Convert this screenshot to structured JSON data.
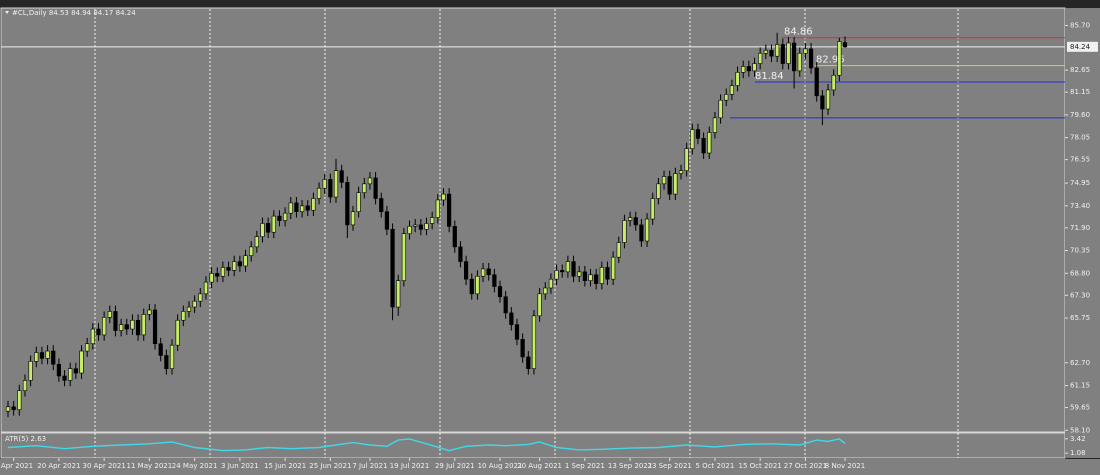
{
  "chart_data": {
    "type": "candlestick",
    "header": "#CL,Daily  84.53 84.94 84.17 84.24",
    "categories": [
      null,
      "8 Apr 2021",
      null,
      null,
      null,
      null,
      null,
      null,
      null,
      "20 Apr 2021",
      null,
      null,
      null,
      null,
      null,
      null,
      null,
      "30 Apr 2021",
      null,
      null,
      null,
      null,
      null,
      null,
      null,
      "11 May 2021",
      null,
      null,
      null,
      null,
      null,
      null,
      null,
      "24 May 2021",
      null,
      null,
      null,
      null,
      null,
      null,
      null,
      "3 Jun 2021",
      null,
      null,
      null,
      null,
      null,
      null,
      null,
      "15 Jun 2021",
      null,
      null,
      null,
      null,
      null,
      null,
      null,
      "25 Jun 2021",
      null,
      null,
      null,
      null,
      null,
      null,
      "7 Jul 2021",
      null,
      null,
      null,
      null,
      null,
      null,
      "19 Jul 2021",
      null,
      null,
      null,
      null,
      null,
      null,
      null,
      "29 Jul 2021",
      null,
      null,
      null,
      null,
      null,
      null,
      null,
      "10 Aug 2021",
      null,
      null,
      null,
      null,
      null,
      null,
      "20 Aug 2021",
      null,
      null,
      null,
      null,
      null,
      null,
      null,
      "1 Sep 2021",
      null,
      null,
      null,
      null,
      null,
      null,
      null,
      "13 Sep 2021",
      null,
      null,
      null,
      null,
      null,
      null,
      "23 Sep 2021",
      null,
      null,
      null,
      null,
      null,
      null,
      null,
      "5 Oct 2021",
      null,
      null,
      null,
      null,
      null,
      null,
      null,
      "15 Oct 2021",
      null,
      null,
      null,
      null,
      null,
      null,
      null,
      "27 Oct 2021",
      null,
      null,
      null,
      null,
      null,
      null,
      "8 Nov 2021"
    ],
    "open": [
      59.4,
      59.7,
      59.5,
      60.8,
      61.5,
      62.8,
      63.4,
      63.0,
      63.5,
      62.6,
      61.8,
      61.5,
      62.3,
      62.0,
      63.5,
      64.0,
      65.0,
      64.6,
      65.8,
      66.2,
      64.9,
      65.3,
      65.0,
      65.6,
      64.6,
      66.0,
      66.3,
      64.0,
      63.2,
      62.3,
      63.9,
      65.6,
      66.2,
      66.5,
      66.9,
      67.4,
      68.2,
      68.8,
      68.6,
      69.2,
      69.0,
      69.6,
      69.3,
      70.0,
      70.6,
      71.3,
      72.2,
      71.6,
      72.7,
      72.4,
      72.9,
      73.6,
      73.0,
      73.4,
      73.1,
      73.9,
      74.6,
      75.2,
      74.0,
      75.8,
      75.0,
      72.1,
      73.0,
      74.3,
      74.9,
      75.3,
      73.9,
      73.0,
      71.8,
      66.5,
      68.3,
      71.5,
      72.0,
      72.1,
      71.8,
      72.2,
      72.6,
      73.8,
      74.2,
      72.0,
      70.6,
      69.6,
      68.4,
      67.4,
      68.6,
      69.1,
      68.7,
      67.9,
      67.2,
      66.1,
      65.3,
      64.3,
      63.1,
      62.3,
      65.9,
      67.4,
      67.8,
      68.4,
      69.0,
      68.9,
      69.6,
      68.6,
      68.9,
      68.3,
      68.7,
      68.1,
      69.2,
      68.4,
      69.9,
      70.9,
      72.4,
      72.6,
      72.1,
      71.0,
      72.5,
      73.9,
      74.9,
      75.4,
      74.2,
      75.6,
      75.8,
      77.3,
      78.6,
      78.0,
      77.0,
      78.4,
      79.4,
      80.6,
      81.0,
      81.6,
      82.5,
      82.9,
      82.6,
      83.1,
      83.8,
      84.0,
      83.6,
      84.4,
      83.1,
      84.5,
      82.6,
      83.8,
      84.1,
      82.8,
      80.9,
      80.0,
      81.3,
      82.3,
      84.53
    ],
    "high": [
      60.1,
      60.1,
      61.2,
      61.9,
      63.2,
      63.8,
      63.8,
      63.9,
      63.9,
      63.0,
      62.2,
      62.7,
      62.7,
      63.9,
      64.4,
      65.4,
      65.4,
      66.2,
      66.6,
      66.6,
      65.7,
      65.7,
      66.0,
      66.0,
      66.4,
      66.7,
      66.7,
      64.4,
      63.6,
      64.3,
      66.0,
      66.6,
      66.9,
      67.3,
      67.8,
      68.6,
      69.2,
      69.2,
      69.6,
      69.6,
      70.0,
      70.0,
      70.4,
      71.0,
      71.7,
      72.6,
      72.6,
      73.1,
      73.1,
      73.3,
      74.0,
      74.0,
      73.8,
      73.8,
      74.3,
      75.0,
      75.6,
      75.6,
      76.6,
      76.2,
      75.4,
      73.4,
      74.7,
      75.3,
      75.7,
      75.7,
      74.3,
      73.4,
      72.2,
      68.7,
      71.9,
      72.4,
      72.5,
      72.5,
      72.6,
      73.0,
      74.2,
      74.6,
      74.6,
      72.4,
      71.0,
      70.0,
      68.8,
      69.0,
      69.5,
      69.5,
      69.1,
      68.3,
      67.6,
      66.5,
      65.7,
      64.7,
      63.5,
      66.3,
      67.8,
      68.2,
      68.8,
      69.4,
      69.4,
      70.0,
      70.0,
      69.3,
      69.3,
      69.1,
      69.1,
      69.6,
      69.6,
      70.3,
      71.3,
      72.8,
      73.0,
      73.0,
      72.5,
      72.9,
      74.3,
      75.3,
      75.8,
      75.8,
      76.0,
      76.2,
      77.7,
      79.0,
      79.0,
      78.4,
      78.8,
      79.8,
      81.0,
      81.4,
      82.0,
      82.9,
      83.3,
      83.3,
      83.5,
      84.2,
      84.4,
      84.4,
      85.2,
      84.8,
      84.9,
      84.9,
      84.2,
      84.5,
      84.5,
      83.2,
      81.3,
      81.7,
      82.7,
      84.86,
      84.94
    ],
    "low": [
      59.0,
      59.1,
      59.1,
      60.4,
      61.1,
      62.4,
      62.6,
      62.6,
      62.2,
      61.4,
      61.1,
      61.1,
      61.6,
      61.6,
      63.1,
      63.6,
      64.2,
      64.2,
      65.4,
      64.5,
      64.5,
      64.6,
      64.6,
      64.2,
      64.2,
      65.6,
      63.6,
      62.8,
      61.9,
      61.9,
      63.5,
      65.2,
      65.8,
      66.1,
      66.5,
      67.0,
      67.8,
      68.2,
      68.2,
      68.6,
      68.6,
      68.9,
      68.9,
      69.6,
      70.2,
      70.9,
      71.2,
      71.2,
      72.0,
      72.0,
      72.5,
      72.6,
      72.6,
      72.7,
      72.7,
      73.5,
      74.2,
      73.6,
      73.6,
      74.6,
      71.2,
      71.7,
      72.6,
      73.9,
      74.5,
      73.5,
      72.6,
      71.4,
      65.6,
      65.9,
      67.9,
      71.1,
      71.6,
      71.4,
      71.4,
      71.8,
      72.2,
      73.4,
      71.6,
      70.2,
      69.2,
      68.0,
      67.0,
      67.0,
      68.2,
      68.3,
      67.5,
      66.8,
      65.7,
      64.9,
      63.9,
      62.7,
      61.9,
      61.9,
      65.5,
      67.0,
      67.4,
      68.0,
      68.5,
      68.5,
      68.2,
      68.2,
      67.9,
      67.9,
      67.7,
      67.7,
      68.0,
      68.0,
      69.5,
      70.5,
      72.0,
      71.7,
      70.6,
      70.6,
      72.1,
      73.5,
      74.5,
      73.8,
      73.8,
      75.2,
      75.4,
      76.9,
      77.6,
      76.6,
      76.6,
      78.0,
      79.0,
      80.2,
      80.6,
      81.2,
      82.1,
      82.2,
      82.2,
      82.7,
      83.4,
      83.2,
      83.2,
      82.7,
      82.7,
      81.4,
      82.2,
      83.4,
      82.4,
      80.5,
      78.9,
      79.6,
      80.9,
      81.9,
      84.17
    ],
    "close": [
      59.7,
      59.5,
      60.8,
      61.5,
      62.8,
      63.4,
      63.0,
      63.5,
      62.6,
      61.8,
      61.5,
      62.3,
      62.0,
      63.5,
      64.0,
      65.0,
      64.6,
      65.8,
      66.2,
      64.9,
      65.3,
      65.0,
      65.6,
      64.6,
      66.0,
      66.3,
      64.0,
      63.2,
      62.3,
      63.9,
      65.6,
      66.2,
      66.5,
      66.9,
      67.4,
      68.2,
      68.8,
      68.6,
      69.2,
      69.0,
      69.6,
      69.3,
      70.0,
      70.6,
      71.3,
      72.2,
      71.6,
      72.7,
      72.4,
      72.9,
      73.6,
      73.0,
      73.4,
      73.1,
      73.9,
      74.6,
      75.2,
      74.0,
      75.8,
      75.0,
      72.1,
      73.0,
      74.3,
      74.9,
      75.3,
      73.9,
      73.0,
      71.8,
      66.5,
      68.3,
      71.5,
      72.0,
      72.1,
      71.8,
      72.2,
      72.6,
      73.8,
      74.2,
      72.0,
      70.6,
      69.6,
      68.4,
      67.4,
      68.6,
      69.1,
      68.7,
      67.9,
      67.2,
      66.1,
      65.3,
      64.3,
      63.1,
      62.3,
      65.9,
      67.4,
      67.8,
      68.4,
      69.0,
      68.9,
      69.6,
      68.6,
      68.9,
      68.3,
      68.7,
      68.1,
      69.2,
      68.4,
      69.9,
      70.9,
      72.4,
      72.6,
      72.1,
      71.0,
      72.5,
      73.9,
      74.9,
      75.4,
      74.2,
      75.6,
      75.8,
      77.3,
      78.6,
      78.0,
      77.0,
      78.4,
      79.4,
      80.6,
      81.0,
      81.6,
      82.5,
      82.9,
      82.6,
      83.1,
      83.8,
      84.0,
      83.6,
      84.4,
      83.1,
      84.5,
      82.6,
      83.8,
      84.1,
      82.8,
      80.9,
      80.0,
      81.3,
      82.3,
      84.6,
      84.24
    ],
    "up_color": "#c6ee66",
    "down_color": "#000000",
    "ylim": [
      58.05,
      86.75
    ],
    "yticks": [
      {
        "value": 85.7,
        "label": "85.70"
      },
      {
        "value": 82.65,
        "label": "82.65"
      },
      {
        "value": 81.15,
        "label": "81.15"
      },
      {
        "value": 79.6,
        "label": "79.60"
      },
      {
        "value": 78.05,
        "label": "78.05"
      },
      {
        "value": 76.55,
        "label": "76.55"
      },
      {
        "value": 74.95,
        "label": "74.95"
      },
      {
        "value": 73.4,
        "label": "73.40"
      },
      {
        "value": 71.9,
        "label": "71.90"
      },
      {
        "value": 70.35,
        "label": "70.35"
      },
      {
        "value": 68.8,
        "label": "68.80"
      },
      {
        "value": 67.3,
        "label": "67.30"
      },
      {
        "value": 65.75,
        "label": "65.75"
      },
      {
        "value": 62.7,
        "label": "62.70"
      },
      {
        "value": 61.15,
        "label": "61.15"
      },
      {
        "value": 59.65,
        "label": "59.65"
      },
      {
        "value": 58.1,
        "label": "58.10"
      }
    ],
    "current_price": 84.24,
    "levels": [
      {
        "value": 84.86,
        "label": "84.86",
        "color": "#d03030"
      },
      {
        "value": 82.96,
        "label": "82.96",
        "color": "#b8e040"
      },
      {
        "value": 81.84,
        "label": "81.84",
        "color": "#2030d0"
      },
      {
        "value": 79.4,
        "color": "#2030d0"
      }
    ],
    "atr": {
      "label": "ATR(5) 2.63",
      "color": "#3fd8e8",
      "x": [
        0,
        5,
        10,
        15,
        20,
        25,
        29,
        33,
        38,
        42,
        46,
        50,
        55,
        58,
        61,
        64,
        67,
        69,
        71,
        74,
        78,
        81,
        85,
        88,
        92,
        94,
        97,
        101,
        105,
        110,
        115,
        120,
        125,
        130,
        135,
        140,
        143,
        145,
        147,
        148
      ],
      "values": [
        2.0,
        2.3,
        1.8,
        2.2,
        2.4,
        2.6,
        2.9,
        2.0,
        1.5,
        1.6,
        2.0,
        1.8,
        2.0,
        2.4,
        2.8,
        2.4,
        2.2,
        3.2,
        3.4,
        2.6,
        1.5,
        2.2,
        2.4,
        2.3,
        2.5,
        2.9,
        2.0,
        1.6,
        1.7,
        1.9,
        2.0,
        2.4,
        2.1,
        2.5,
        2.6,
        2.4,
        3.2,
        3.0,
        3.4,
        2.63
      ],
      "ylim": [
        0.45,
        4.2
      ],
      "yticks": [
        3.42,
        1.08
      ]
    }
  }
}
